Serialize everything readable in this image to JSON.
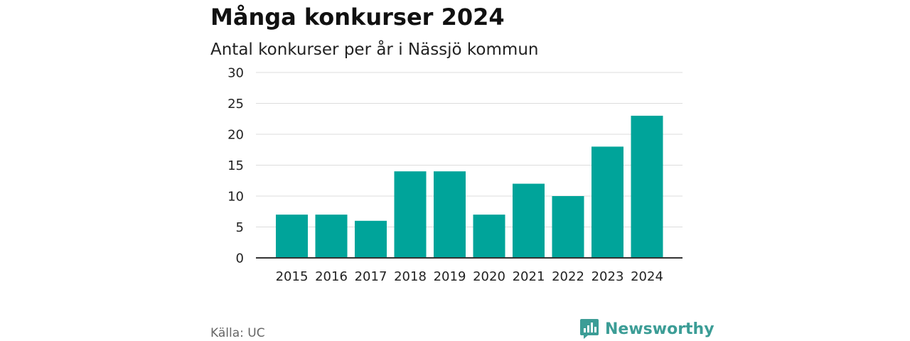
{
  "header": {
    "title": "Många konkurser 2024",
    "subtitle": "Antal konkurser per år i Nässjö kommun"
  },
  "footer": {
    "source": "Källa: UC",
    "brand": "Newsworthy",
    "brand_icon": "newsworthy-logo-icon"
  },
  "colors": {
    "bar": "#00a49a",
    "grid": "#dcdcdc",
    "axis": "#333333",
    "brand": "#3c9d96"
  },
  "chart_data": {
    "type": "bar",
    "categories": [
      "2015",
      "2016",
      "2017",
      "2018",
      "2019",
      "2020",
      "2021",
      "2022",
      "2023",
      "2024"
    ],
    "values": [
      7,
      7,
      6,
      14,
      14,
      7,
      12,
      10,
      18,
      23
    ],
    "yticks": [
      "0",
      "5",
      "10",
      "15",
      "20",
      "25",
      "30"
    ],
    "ylim": [
      0,
      30
    ],
    "title": "Många konkurser 2024",
    "subtitle": "Antal konkurser per år i Nässjö kommun",
    "xlabel": "",
    "ylabel": "",
    "grid": true,
    "legend": "none"
  }
}
